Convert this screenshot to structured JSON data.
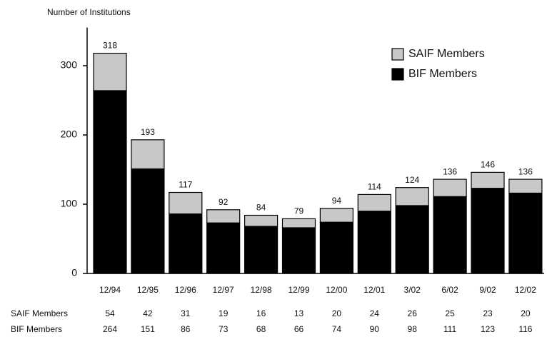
{
  "chart_data": {
    "type": "bar",
    "stacked": true,
    "y_axis_label": "Number of Institutions",
    "categories": [
      "12/94",
      "12/95",
      "12/96",
      "12/97",
      "12/98",
      "12/99",
      "12/00",
      "12/01",
      "3/02",
      "6/02",
      "9/02",
      "12/02"
    ],
    "series": [
      {
        "name": "SAIF Members",
        "color": "#c8c8c8",
        "values": [
          54,
          42,
          31,
          19,
          16,
          13,
          20,
          24,
          26,
          25,
          23,
          20
        ]
      },
      {
        "name": "BIF Members",
        "color": "#000000",
        "values": [
          264,
          151,
          86,
          73,
          68,
          66,
          74,
          90,
          98,
          111,
          123,
          116
        ]
      }
    ],
    "totals": [
      318,
      193,
      117,
      92,
      84,
      79,
      94,
      114,
      124,
      136,
      146,
      136
    ],
    "ylim": [
      0,
      355
    ],
    "yticks": [
      0,
      100,
      200,
      300
    ],
    "grid": false,
    "legend": "upper right"
  }
}
